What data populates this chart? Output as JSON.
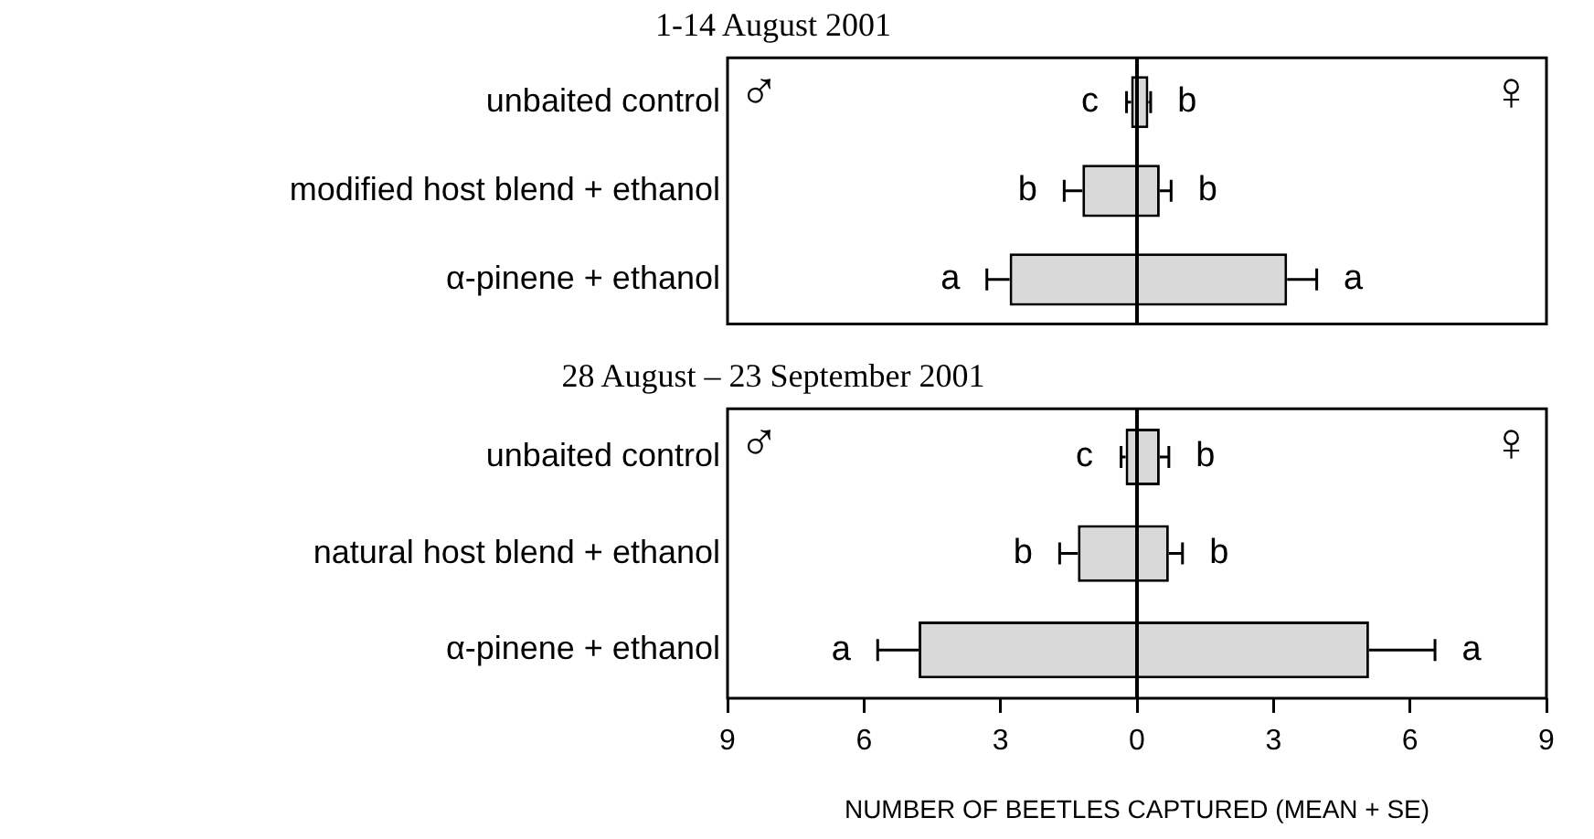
{
  "chart_data": [
    {
      "type": "bar",
      "orientation": "horizontal",
      "stacked": true,
      "title": "1-14 August 2001",
      "categories": [
        "unbaited control",
        "modified host blend + ethanol",
        "α-pinene + ethanol"
      ],
      "series": [
        {
          "color": "#d9d9d9",
          "values": [
            -0.13,
            -1.2,
            -2.8
          ],
          "errors": [
            0.1,
            0.4,
            0.5
          ]
        },
        {
          "color": "#d9d9d9",
          "values": [
            0.25,
            0.5,
            3.3
          ],
          "errors": [
            0.05,
            0.25,
            0.65
          ]
        }
      ],
      "xlim": [
        -9,
        9
      ],
      "tick_labels": "y",
      "grid": false,
      "legend": false,
      "ref_lines": [
        {
          "axis": "x",
          "value": 0
        }
      ],
      "annotations": [
        "♂",
        "♀",
        "c",
        "b",
        "b",
        "b",
        "a",
        "a"
      ]
    },
    {
      "type": "bar",
      "orientation": "horizontal",
      "stacked": true,
      "title": "28 August – 23 September 2001",
      "xlabel": "NUMBER OF BEETLES CAPTURED (MEAN + SE)",
      "categories": [
        "unbaited control",
        "natural host blend + ethanol",
        "α-pinene + ethanol"
      ],
      "series": [
        {
          "color": "#d9d9d9",
          "values": [
            -0.25,
            -1.3,
            -4.8
          ],
          "errors": [
            0.1,
            0.4,
            0.9
          ]
        },
        {
          "color": "#d9d9d9",
          "values": [
            0.5,
            0.7,
            5.1
          ],
          "errors": [
            0.2,
            0.3,
            1.45
          ]
        }
      ],
      "xlim": [
        -9,
        9
      ],
      "xticks": [
        {
          "value": -9,
          "label": "9"
        },
        {
          "value": -6,
          "label": "6"
        },
        {
          "value": -3,
          "label": "3"
        },
        0,
        3,
        6,
        9
      ],
      "grid": false,
      "legend": false,
      "ref_lines": [
        {
          "axis": "x",
          "value": 0
        }
      ],
      "annotations": [
        "♂",
        "♀",
        "c",
        "b",
        "b",
        "b",
        "a",
        "a"
      ]
    }
  ]
}
